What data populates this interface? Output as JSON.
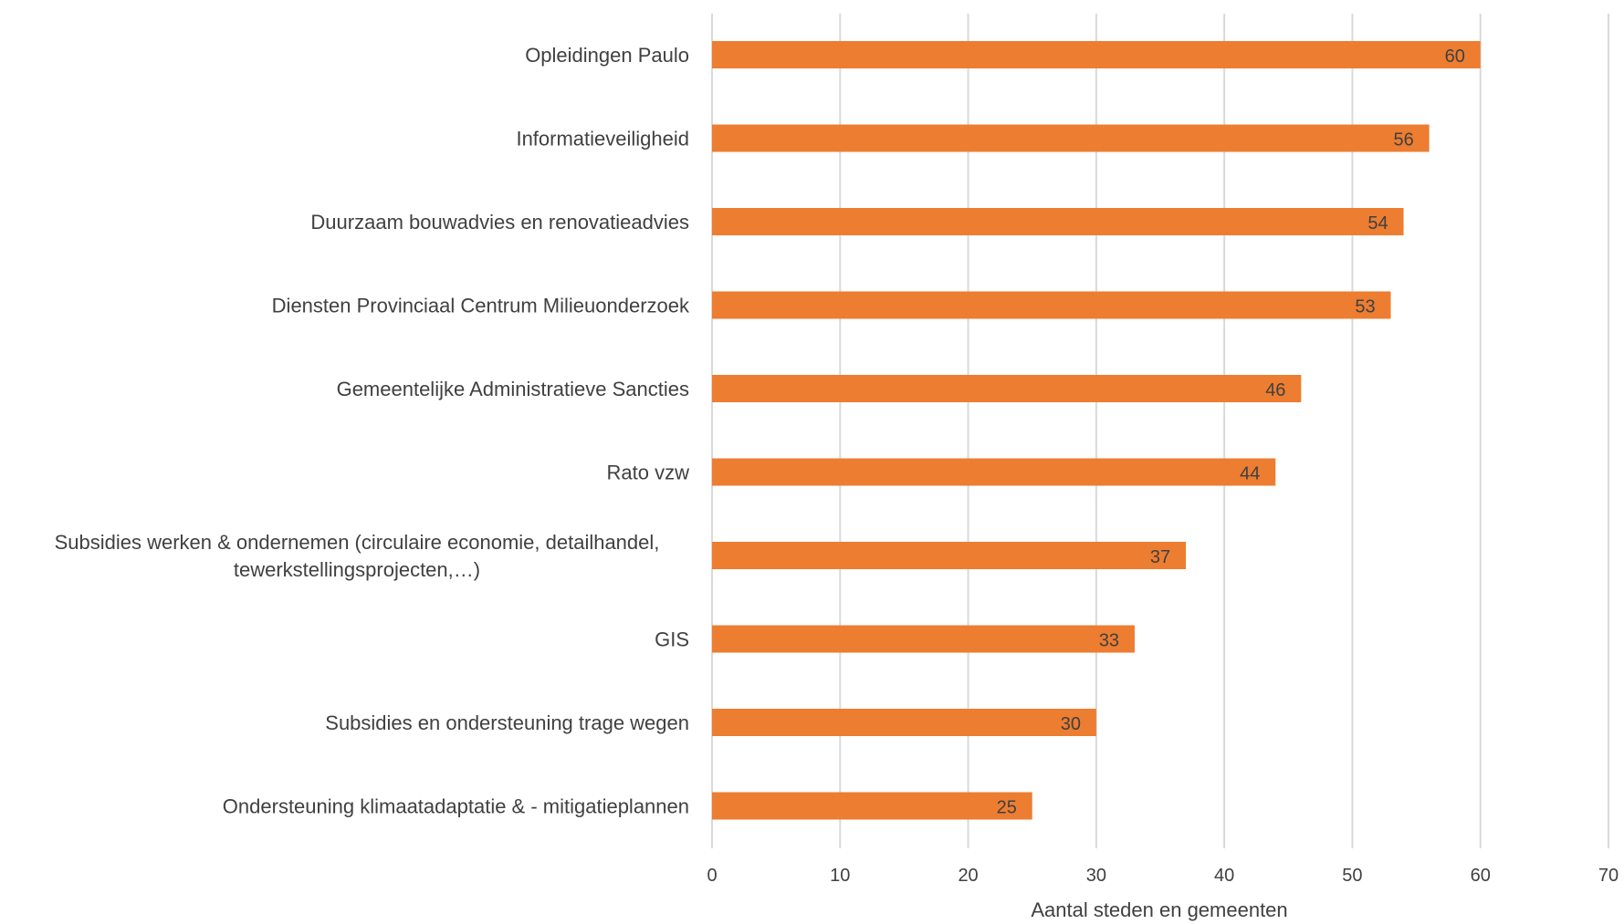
{
  "chart_data": {
    "type": "bar",
    "orientation": "horizontal",
    "categories": [
      [
        "Opleidingen Paulo"
      ],
      [
        "Informatieveiligheid"
      ],
      [
        "Duurzaam bouwadvies en renovatieadvies"
      ],
      [
        "Diensten Provinciaal Centrum Milieuonderzoek"
      ],
      [
        "Gemeentelijke Administratieve Sancties"
      ],
      [
        "Rato vzw"
      ],
      [
        "Subsidies werken & ondernemen (circulaire economie, detailhandel,",
        "tewerkstellingsprojecten,…)"
      ],
      [
        "GIS"
      ],
      [
        "Subsidies en ondersteuning trage wegen"
      ],
      [
        "Ondersteuning klimaatadaptatie & - mitigatieplannen"
      ]
    ],
    "values": [
      60,
      56,
      54,
      53,
      46,
      44,
      37,
      33,
      30,
      25
    ],
    "xlabel": "Aantal steden en gemeenten",
    "ylabel": "",
    "xlim": [
      0,
      70
    ],
    "xticks": [
      0,
      10,
      20,
      30,
      40,
      50,
      60,
      70
    ],
    "bar_color": "#ED7D31",
    "grid": true,
    "data_labels": true
  }
}
